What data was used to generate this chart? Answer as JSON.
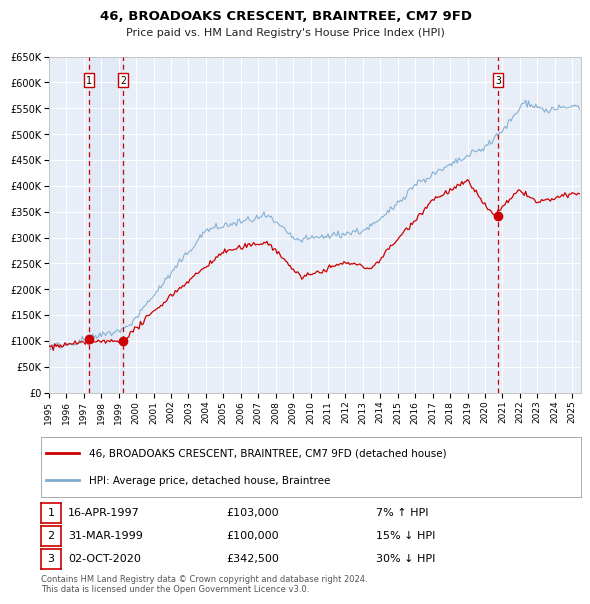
{
  "title": "46, BROADOAKS CRESCENT, BRAINTREE, CM7 9FD",
  "subtitle": "Price paid vs. HM Land Registry's House Price Index (HPI)",
  "background_color": "#ffffff",
  "plot_bg_color": "#e8eef8",
  "grid_color": "#ffffff",
  "xmin": 1995.0,
  "xmax": 2025.5,
  "ymin": 0,
  "ymax": 650000,
  "yticks": [
    0,
    50000,
    100000,
    150000,
    200000,
    250000,
    300000,
    350000,
    400000,
    450000,
    500000,
    550000,
    600000,
    650000
  ],
  "ytick_labels": [
    "£0",
    "£50K",
    "£100K",
    "£150K",
    "£200K",
    "£250K",
    "£300K",
    "£350K",
    "£400K",
    "£450K",
    "£500K",
    "£550K",
    "£600K",
    "£650K"
  ],
  "sale_dates": [
    1997.29,
    1999.25,
    2020.75
  ],
  "sale_prices": [
    103000,
    100000,
    342500
  ],
  "sale_labels": [
    "1",
    "2",
    "3"
  ],
  "vline_color": "#cc0000",
  "sale_dot_color": "#cc0000",
  "hpi_line_color": "#7aaad0",
  "price_line_color": "#cc0000",
  "legend_items": [
    {
      "label": "46, BROADOAKS CRESCENT, BRAINTREE, CM7 9FD (detached house)",
      "color": "#cc0000"
    },
    {
      "label": "HPI: Average price, detached house, Braintree",
      "color": "#7aaad0"
    }
  ],
  "table_rows": [
    {
      "num": "1",
      "date": "16-APR-1997",
      "price": "£103,000",
      "hpi": "7% ↑ HPI"
    },
    {
      "num": "2",
      "date": "31-MAR-1999",
      "price": "£100,000",
      "hpi": "15% ↓ HPI"
    },
    {
      "num": "3",
      "date": "02-OCT-2020",
      "price": "£342,500",
      "hpi": "30% ↓ HPI"
    }
  ],
  "footnote": "Contains HM Land Registry data © Crown copyright and database right 2024.\nThis data is licensed under the Open Government Licence v3.0.",
  "xtick_years": [
    1995,
    1996,
    1997,
    1998,
    1999,
    2000,
    2001,
    2002,
    2003,
    2004,
    2005,
    2006,
    2007,
    2008,
    2009,
    2010,
    2011,
    2012,
    2013,
    2014,
    2015,
    2016,
    2017,
    2018,
    2019,
    2020,
    2021,
    2022,
    2023,
    2024,
    2025
  ]
}
